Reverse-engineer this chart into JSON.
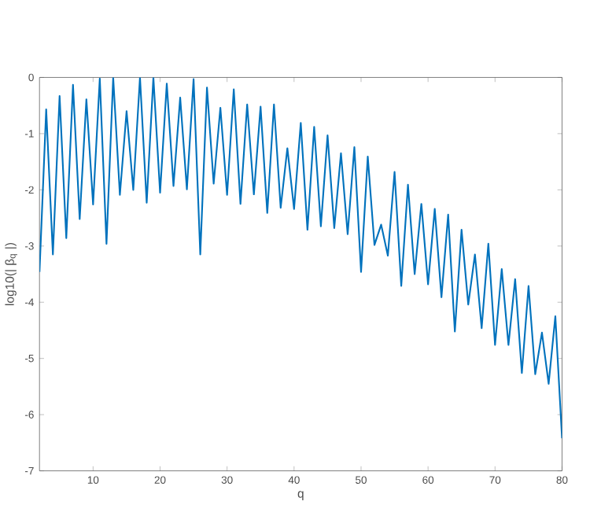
{
  "chart_data": {
    "type": "line",
    "xlabel": "q",
    "ylabel": "log10(| β$_{q}$ |)",
    "x": [
      2,
      3,
      4,
      5,
      6,
      7,
      8,
      9,
      10,
      11,
      12,
      13,
      14,
      15,
      16,
      17,
      18,
      19,
      20,
      21,
      22,
      23,
      24,
      25,
      26,
      27,
      28,
      29,
      30,
      31,
      32,
      33,
      34,
      35,
      36,
      37,
      38,
      39,
      40,
      41,
      42,
      43,
      44,
      45,
      46,
      47,
      48,
      49,
      50,
      51,
      52,
      53,
      54,
      55,
      56,
      57,
      58,
      59,
      60,
      61,
      62,
      63,
      64,
      65,
      66,
      67,
      68,
      69,
      70,
      71,
      72,
      73,
      74,
      75,
      76,
      77,
      78,
      79,
      80
    ],
    "values": [
      -3.46,
      -0.57,
      -3.15,
      -0.33,
      -2.86,
      -0.13,
      -2.52,
      -0.39,
      -2.26,
      -0.02,
      -2.96,
      0,
      -2.09,
      -0.6,
      -2.0,
      0,
      -2.23,
      0,
      -2.05,
      -0.11,
      -1.93,
      -0.36,
      -1.99,
      -0.03,
      -3.15,
      -0.18,
      -1.89,
      -0.54,
      -2.09,
      -0.21,
      -2.25,
      -0.48,
      -2.08,
      -0.52,
      -2.41,
      -0.48,
      -2.32,
      -1.26,
      -2.34,
      -0.81,
      -2.71,
      -0.88,
      -2.65,
      -1.03,
      -2.68,
      -1.35,
      -2.79,
      -1.24,
      -3.46,
      -1.41,
      -2.98,
      -2.62,
      -3.17,
      -1.68,
      -3.71,
      -1.91,
      -3.5,
      -2.25,
      -3.68,
      -2.34,
      -3.91,
      -2.44,
      -4.52,
      -2.71,
      -4.04,
      -3.15,
      -4.46,
      -2.96,
      -4.76,
      -3.41,
      -4.76,
      -3.59,
      -5.26,
      -3.71,
      -5.28,
      -4.54,
      -5.45,
      -4.25,
      -6.42
    ],
    "color": "#0072bd",
    "xlim": [
      2,
      80
    ],
    "ylim": [
      -7,
      0
    ],
    "xticks": [
      10,
      20,
      30,
      40,
      50,
      60,
      70,
      80
    ],
    "yticks": [
      -7,
      -6,
      -5,
      -4,
      -3,
      -2,
      -1,
      0
    ],
    "grid": false,
    "marker": "none",
    "line_style": "solid"
  }
}
